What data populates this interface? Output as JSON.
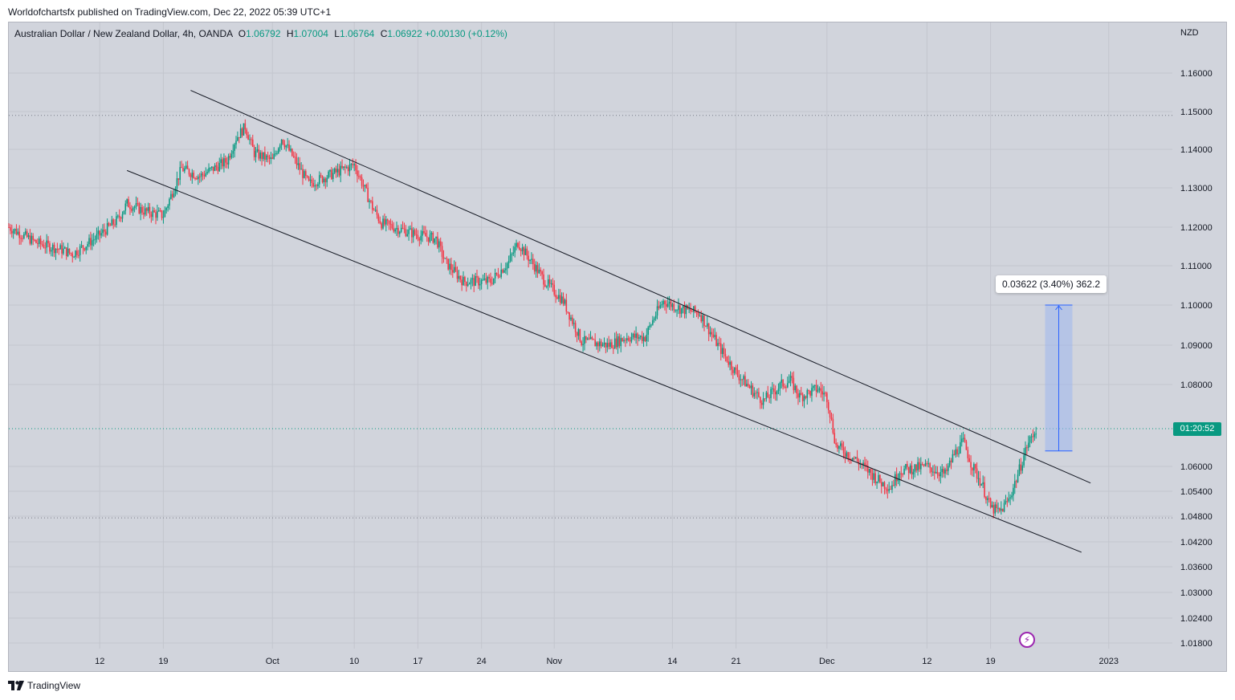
{
  "header": {
    "publish_text": "Worldofchartsfx published on TradingView.com, Dec 22, 2022 05:39 UTC+1"
  },
  "legend": {
    "symbol": "Australian Dollar / New Zealand Dollar, 4h, OANDA",
    "open_label": "O",
    "open": "1.06792",
    "high_label": "H",
    "high": "1.07004",
    "low_label": "L",
    "low": "1.06764",
    "close_label": "C",
    "close": "1.06922",
    "change": "+0.00130 (+0.12%)"
  },
  "price_axis": {
    "currency": "NZD"
  },
  "countdown": "01:20:52",
  "measure": {
    "label": "0.03622 (3.40%) 362.2"
  },
  "footer": {
    "brand": "TradingView"
  },
  "colors": {
    "up": "#089981",
    "down": "#f23645",
    "background": "#d1d4dc",
    "measure_fill": "#9fb6ee",
    "measure_line": "#2962ff",
    "trendline": "#131722"
  },
  "chart_data": {
    "type": "candlestick",
    "interval": "4h",
    "y_ticks": [
      "1.16000",
      "1.15000",
      "1.14000",
      "1.13000",
      "1.12000",
      "1.11000",
      "1.10000",
      "1.09000",
      "1.08000",
      "1.06000",
      "1.05400",
      "1.04800",
      "1.04200",
      "1.03600",
      "1.03000",
      "1.02400",
      "1.01800"
    ],
    "x_ticks": [
      {
        "label": "12",
        "date": "2022-09-12"
      },
      {
        "label": "19",
        "date": "2022-09-19"
      },
      {
        "label": "Oct",
        "date": "2022-10-01"
      },
      {
        "label": "10",
        "date": "2022-10-10"
      },
      {
        "label": "17",
        "date": "2022-10-17"
      },
      {
        "label": "24",
        "date": "2022-10-24"
      },
      {
        "label": "Nov",
        "date": "2022-11-01"
      },
      {
        "label": "14",
        "date": "2022-11-14"
      },
      {
        "label": "21",
        "date": "2022-11-21"
      },
      {
        "label": "Dec",
        "date": "2022-12-01"
      },
      {
        "label": "12",
        "date": "2022-12-12"
      },
      {
        "label": "19",
        "date": "2022-12-19"
      },
      {
        "label": "2023",
        "date": "2023-01-01"
      }
    ],
    "x_range": [
      "2022-09-02",
      "2023-01-08"
    ],
    "price_path": [
      [
        "2022-09-02",
        1.12
      ],
      [
        "2022-09-05",
        1.116
      ],
      [
        "2022-09-08",
        1.114
      ],
      [
        "2022-09-09",
        1.113
      ],
      [
        "2022-09-12",
        1.118
      ],
      [
        "2022-09-14",
        1.122
      ],
      [
        "2022-09-15",
        1.126
      ],
      [
        "2022-09-17",
        1.124
      ],
      [
        "2022-09-19",
        1.123
      ],
      [
        "2022-09-21",
        1.135
      ],
      [
        "2022-09-23",
        1.133
      ],
      [
        "2022-09-26",
        1.137
      ],
      [
        "2022-09-27",
        1.143
      ],
      [
        "2022-09-28",
        1.146
      ],
      [
        "2022-09-29",
        1.139
      ],
      [
        "2022-10-01",
        1.137
      ],
      [
        "2022-10-02",
        1.143
      ],
      [
        "2022-10-05",
        1.131
      ],
      [
        "2022-10-07",
        1.133
      ],
      [
        "2022-10-10",
        1.136
      ],
      [
        "2022-10-12",
        1.125
      ],
      [
        "2022-10-13",
        1.121
      ],
      [
        "2022-10-17",
        1.118
      ],
      [
        "2022-10-19",
        1.117
      ],
      [
        "2022-10-20",
        1.111
      ],
      [
        "2022-10-22",
        1.106
      ],
      [
        "2022-10-25",
        1.106
      ],
      [
        "2022-10-27",
        1.111
      ],
      [
        "2022-10-28",
        1.116
      ],
      [
        "2022-10-31",
        1.106
      ],
      [
        "2022-11-02",
        1.101
      ],
      [
        "2022-11-04",
        1.091
      ],
      [
        "2022-11-07",
        1.09
      ],
      [
        "2022-11-09",
        1.092
      ],
      [
        "2022-11-11",
        1.092
      ],
      [
        "2022-11-12",
        1.097
      ],
      [
        "2022-11-13",
        1.101
      ],
      [
        "2022-11-15",
        1.099
      ],
      [
        "2022-11-17",
        1.098
      ],
      [
        "2022-11-19",
        1.09
      ],
      [
        "2022-11-21",
        1.083
      ],
      [
        "2022-11-23",
        1.078
      ],
      [
        "2022-11-24",
        1.076
      ],
      [
        "2022-11-26",
        1.08
      ],
      [
        "2022-11-27",
        1.081
      ],
      [
        "2022-11-28",
        1.077
      ],
      [
        "2022-11-30",
        1.079
      ],
      [
        "2022-12-01",
        1.077
      ],
      [
        "2022-12-02",
        1.065
      ],
      [
        "2022-12-04",
        1.062
      ],
      [
        "2022-12-06",
        1.058
      ],
      [
        "2022-12-07",
        1.056
      ],
      [
        "2022-12-08",
        1.055
      ],
      [
        "2022-12-09",
        1.059
      ],
      [
        "2022-12-12",
        1.06
      ],
      [
        "2022-12-14",
        1.058
      ],
      [
        "2022-12-15",
        1.063
      ],
      [
        "2022-12-16",
        1.066
      ],
      [
        "2022-12-17",
        1.06
      ],
      [
        "2022-12-18",
        1.056
      ],
      [
        "2022-12-19",
        1.05
      ],
      [
        "2022-12-20",
        1.049
      ],
      [
        "2022-12-21",
        1.052
      ],
      [
        "2022-12-22",
        1.058
      ],
      [
        "2022-12-23",
        1.065
      ],
      [
        "2022-12-24",
        1.06922
      ]
    ],
    "swing_high": 1.149,
    "swing_low": 1.0476,
    "current_price": 1.06922,
    "channel": {
      "upper": [
        [
          "2022-09-22",
          1.1555
        ],
        [
          "2022-12-30",
          1.056
        ]
      ],
      "lower": [
        [
          "2022-09-15",
          1.1345
        ],
        [
          "2022-12-29",
          1.0395
        ]
      ]
    },
    "measure": {
      "from": 1.06378,
      "to": 1.1,
      "start": "2022-12-25",
      "end": "2022-12-28"
    }
  }
}
